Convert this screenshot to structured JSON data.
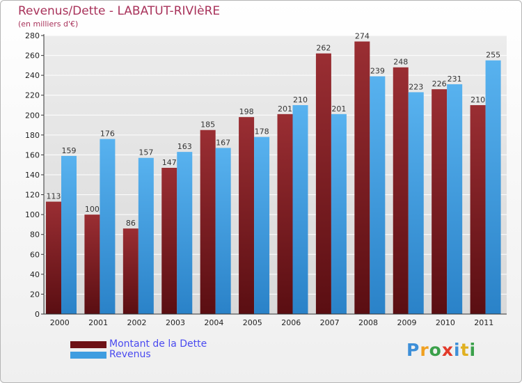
{
  "title": "Revenus/Dette - LABATUT-RIVIèRE",
  "subtitle": "(en milliers d'€)",
  "chart_data": {
    "type": "bar",
    "categories": [
      "2000",
      "2001",
      "2002",
      "2003",
      "2004",
      "2005",
      "2006",
      "2007",
      "2008",
      "2009",
      "2010",
      "2011"
    ],
    "series": [
      {
        "name": "Montant de la Dette",
        "color": "#7a1a1e",
        "values": [
          113,
          100,
          86,
          147,
          185,
          198,
          201,
          262,
          274,
          248,
          226,
          210
        ]
      },
      {
        "name": "Revenus",
        "color": "#3f9de0",
        "values": [
          159,
          176,
          157,
          163,
          167,
          178,
          210,
          201,
          239,
          223,
          231,
          255
        ]
      }
    ],
    "ylim": [
      0,
      280
    ],
    "ytick_step": 20,
    "grid": true,
    "legend_placement": "bottom-left"
  },
  "brand": {
    "letters": [
      "P",
      "r",
      "o",
      "x",
      "i",
      "t",
      "i"
    ],
    "colors": [
      "#3d8fd8",
      "#f0a020",
      "#3aa04a",
      "#e23a2a",
      "#3d8fd8",
      "#e0b020",
      "#3aa04a"
    ]
  }
}
